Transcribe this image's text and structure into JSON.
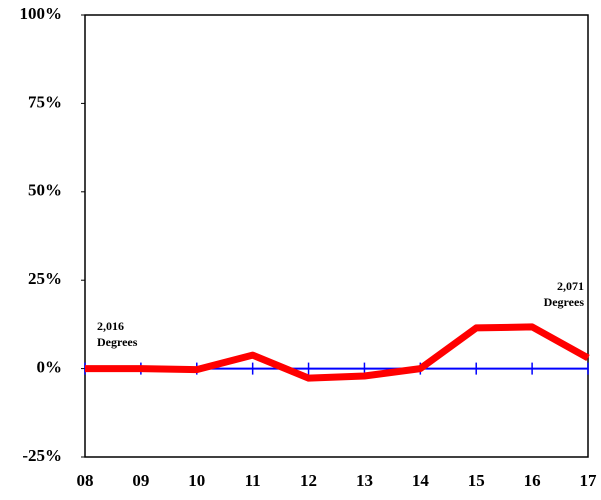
{
  "chart_data": {
    "type": "line",
    "categories": [
      "08",
      "09",
      "10",
      "11",
      "12",
      "13",
      "14",
      "15",
      "16",
      "17"
    ],
    "series": [
      {
        "color": "#ff0000",
        "values": [
          0,
          0,
          -0.3,
          3.8,
          -2.7,
          -2.1,
          0,
          11.5,
          11.8,
          3.0
        ]
      }
    ],
    "ylim": [
      -25,
      100
    ],
    "yticks": [
      {
        "value": -25,
        "label": "-25%"
      },
      {
        "value": 0,
        "label": "0%"
      },
      {
        "value": 25,
        "label": "25%"
      },
      {
        "value": 50,
        "label": "50%"
      },
      {
        "value": 75,
        "label": "75%"
      },
      {
        "value": 100,
        "label": "100%"
      }
    ],
    "zero_line_color": "#0000ff",
    "annotations": [
      {
        "lines": [
          "2,016",
          "Degrees"
        ]
      },
      {
        "lines": [
          "2,071",
          "Degrees"
        ]
      }
    ]
  }
}
